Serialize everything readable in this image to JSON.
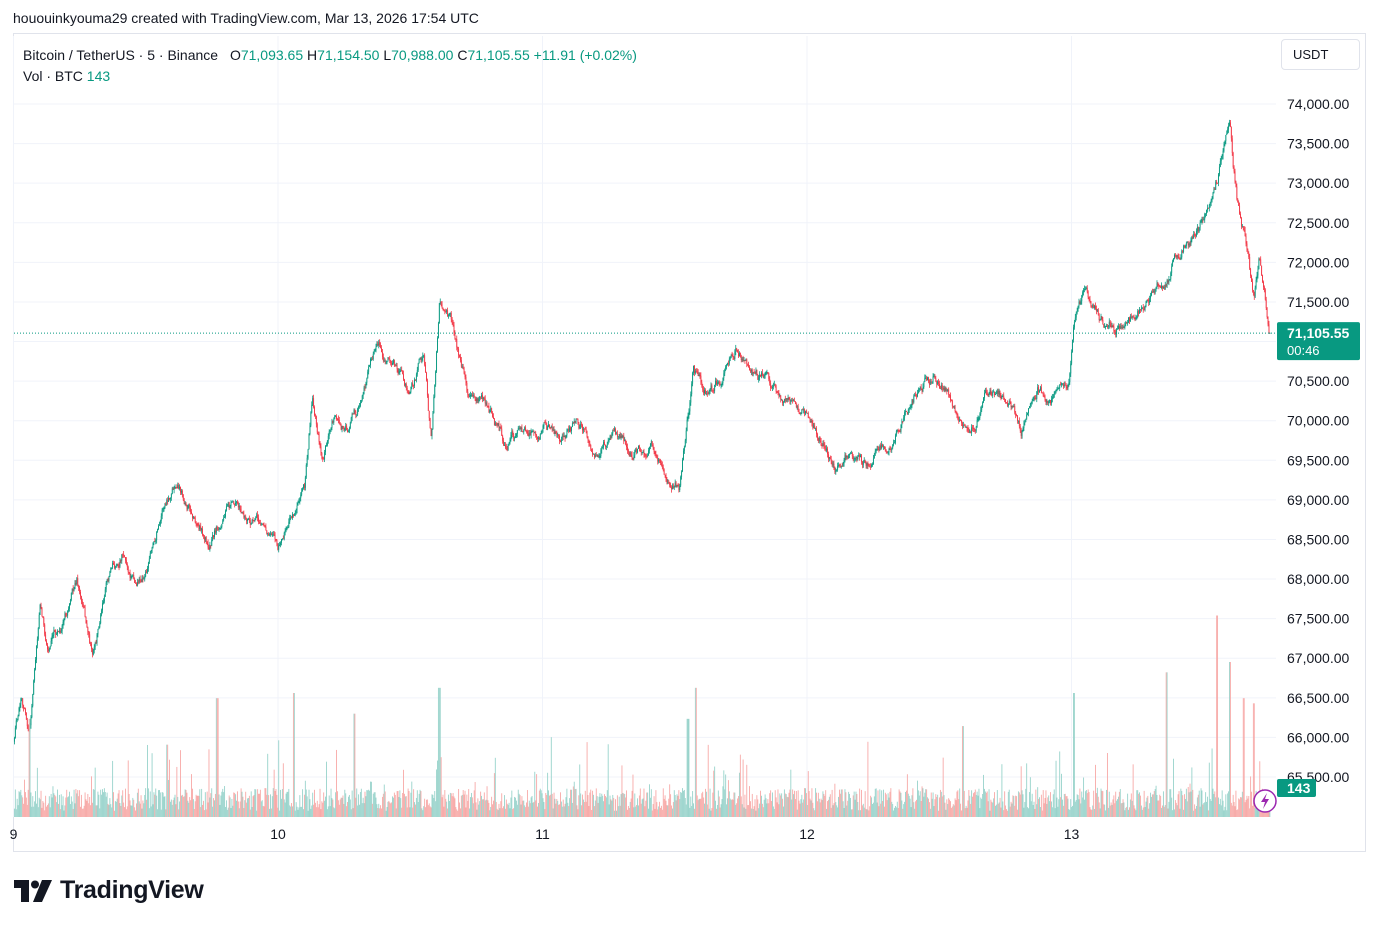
{
  "header": {
    "attribution": "hououinkyouma29 created with TradingView.com, Mar 13, 2026 17:54 UTC"
  },
  "legend": {
    "symbol": "Bitcoin / TetherUS · 5 · Binance",
    "open_label": "O",
    "open": "71,093.65",
    "high_label": "H",
    "high": "71,154.50",
    "low_label": "L",
    "low": "70,988.00",
    "close_label": "C",
    "close": "71,105.55",
    "change": "+11.91 (+0.02%)",
    "vol_label": "Vol · BTC",
    "vol_value": "143"
  },
  "currency_selector": {
    "label": "USDT"
  },
  "price_tag": {
    "price": "71,105.55",
    "countdown": "00:46"
  },
  "volume_tag": {
    "value": "143"
  },
  "footer": {
    "brand": "TradingView"
  },
  "colors": {
    "up": "#089981",
    "down": "#f23645",
    "vol_up": "#98d3cb",
    "vol_down": "#f7a9a7",
    "grid": "#f0f3fa",
    "text": "#131722",
    "price_line": "#089981"
  },
  "chart_data": {
    "type": "candlestick",
    "title": "Bitcoin / TetherUS · 5 · Binance",
    "interval": "5 minutes",
    "y_axis": {
      "ticks": [
        74000,
        73500,
        73000,
        72500,
        72000,
        71500,
        71000,
        70500,
        70000,
        69500,
        69000,
        68500,
        68000,
        67500,
        67000,
        66500,
        66000,
        65500
      ],
      "tick_labels": [
        "74,000.00",
        "73,500.00",
        "73,000.00",
        "72,500.00",
        "72,000.00",
        "71,500.00",
        "71,000.00",
        "70,500.00",
        "70,000.00",
        "69,500.00",
        "69,000.00",
        "68,500.00",
        "68,000.00",
        "67,500.00",
        "67,000.00",
        "66,500.00",
        "66,000.00",
        "65,500.00"
      ],
      "range": [
        65000,
        74600
      ],
      "position": "right"
    },
    "x_axis": {
      "ticks": [
        9,
        10,
        11,
        12,
        13
      ],
      "tick_labels": [
        "9",
        "10",
        "11",
        "12",
        "13"
      ],
      "range_days": [
        9.0,
        13.75
      ]
    },
    "grid": true,
    "last_price": 71105.55,
    "price_path": [
      [
        9.0,
        66000
      ],
      [
        9.03,
        66600
      ],
      [
        9.06,
        66100
      ],
      [
        9.1,
        67600
      ],
      [
        9.13,
        67100
      ],
      [
        9.18,
        67400
      ],
      [
        9.24,
        68000
      ],
      [
        9.3,
        67000
      ],
      [
        9.36,
        68000
      ],
      [
        9.41,
        68300
      ],
      [
        9.46,
        67900
      ],
      [
        9.51,
        68150
      ],
      [
        9.56,
        68900
      ],
      [
        9.62,
        69300
      ],
      [
        9.68,
        68800
      ],
      [
        9.74,
        68400
      ],
      [
        9.8,
        68900
      ],
      [
        9.87,
        68800
      ],
      [
        9.95,
        68650
      ],
      [
        10.0,
        68400
      ],
      [
        10.05,
        68800
      ],
      [
        10.1,
        69100
      ],
      [
        10.13,
        70300
      ],
      [
        10.17,
        69500
      ],
      [
        10.21,
        70000
      ],
      [
        10.26,
        69900
      ],
      [
        10.31,
        70200
      ],
      [
        10.37,
        71000
      ],
      [
        10.44,
        70700
      ],
      [
        10.5,
        70350
      ],
      [
        10.55,
        70900
      ],
      [
        10.58,
        69700
      ],
      [
        10.61,
        71500
      ],
      [
        10.66,
        71200
      ],
      [
        10.72,
        70300
      ],
      [
        10.79,
        70150
      ],
      [
        10.86,
        69700
      ],
      [
        10.93,
        69900
      ],
      [
        11.01,
        69900
      ],
      [
        11.07,
        69700
      ],
      [
        11.13,
        70000
      ],
      [
        11.2,
        69600
      ],
      [
        11.27,
        69800
      ],
      [
        11.34,
        69600
      ],
      [
        11.41,
        69650
      ],
      [
        11.47,
        69300
      ],
      [
        11.52,
        69200
      ],
      [
        11.57,
        70600
      ],
      [
        11.62,
        70300
      ],
      [
        11.67,
        70500
      ],
      [
        11.73,
        70900
      ],
      [
        11.79,
        70600
      ],
      [
        11.86,
        70500
      ],
      [
        11.91,
        70200
      ],
      [
        11.98,
        70100
      ],
      [
        12.04,
        69800
      ],
      [
        12.1,
        69400
      ],
      [
        12.16,
        69550
      ],
      [
        12.23,
        69400
      ],
      [
        12.29,
        69700
      ],
      [
        12.36,
        70000
      ],
      [
        12.42,
        70400
      ],
      [
        12.48,
        70550
      ],
      [
        12.54,
        70350
      ],
      [
        12.61,
        69700
      ],
      [
        12.68,
        70300
      ],
      [
        12.75,
        70300
      ],
      [
        12.81,
        69900
      ],
      [
        12.87,
        70400
      ],
      [
        12.93,
        70300
      ],
      [
        12.99,
        70500
      ],
      [
        13.01,
        71300
      ],
      [
        13.05,
        71600
      ],
      [
        13.11,
        71300
      ],
      [
        13.16,
        71200
      ],
      [
        13.23,
        71300
      ],
      [
        13.3,
        71500
      ],
      [
        13.36,
        71800
      ],
      [
        13.42,
        72200
      ],
      [
        13.48,
        72400
      ],
      [
        13.53,
        72700
      ],
      [
        13.58,
        73500
      ],
      [
        13.6,
        73800
      ],
      [
        13.61,
        73300
      ],
      [
        13.63,
        72700
      ],
      [
        13.66,
        72200
      ],
      [
        13.69,
        71500
      ],
      [
        13.71,
        72000
      ],
      [
        13.74,
        71350
      ],
      [
        13.75,
        71105.55
      ]
    ],
    "volume_axis": {
      "range": [
        0,
        210
      ]
    },
    "volume_spikes": [
      [
        9.06,
        95
      ],
      [
        9.58,
        70
      ],
      [
        9.77,
        115
      ],
      [
        10.06,
        120
      ],
      [
        10.29,
        100
      ],
      [
        10.61,
        125
      ],
      [
        11.55,
        95
      ],
      [
        11.58,
        125
      ],
      [
        12.59,
        88
      ],
      [
        13.01,
        120
      ],
      [
        13.36,
        140
      ],
      [
        13.55,
        195
      ],
      [
        13.6,
        150
      ],
      [
        13.65,
        115
      ],
      [
        13.69,
        110
      ]
    ]
  }
}
